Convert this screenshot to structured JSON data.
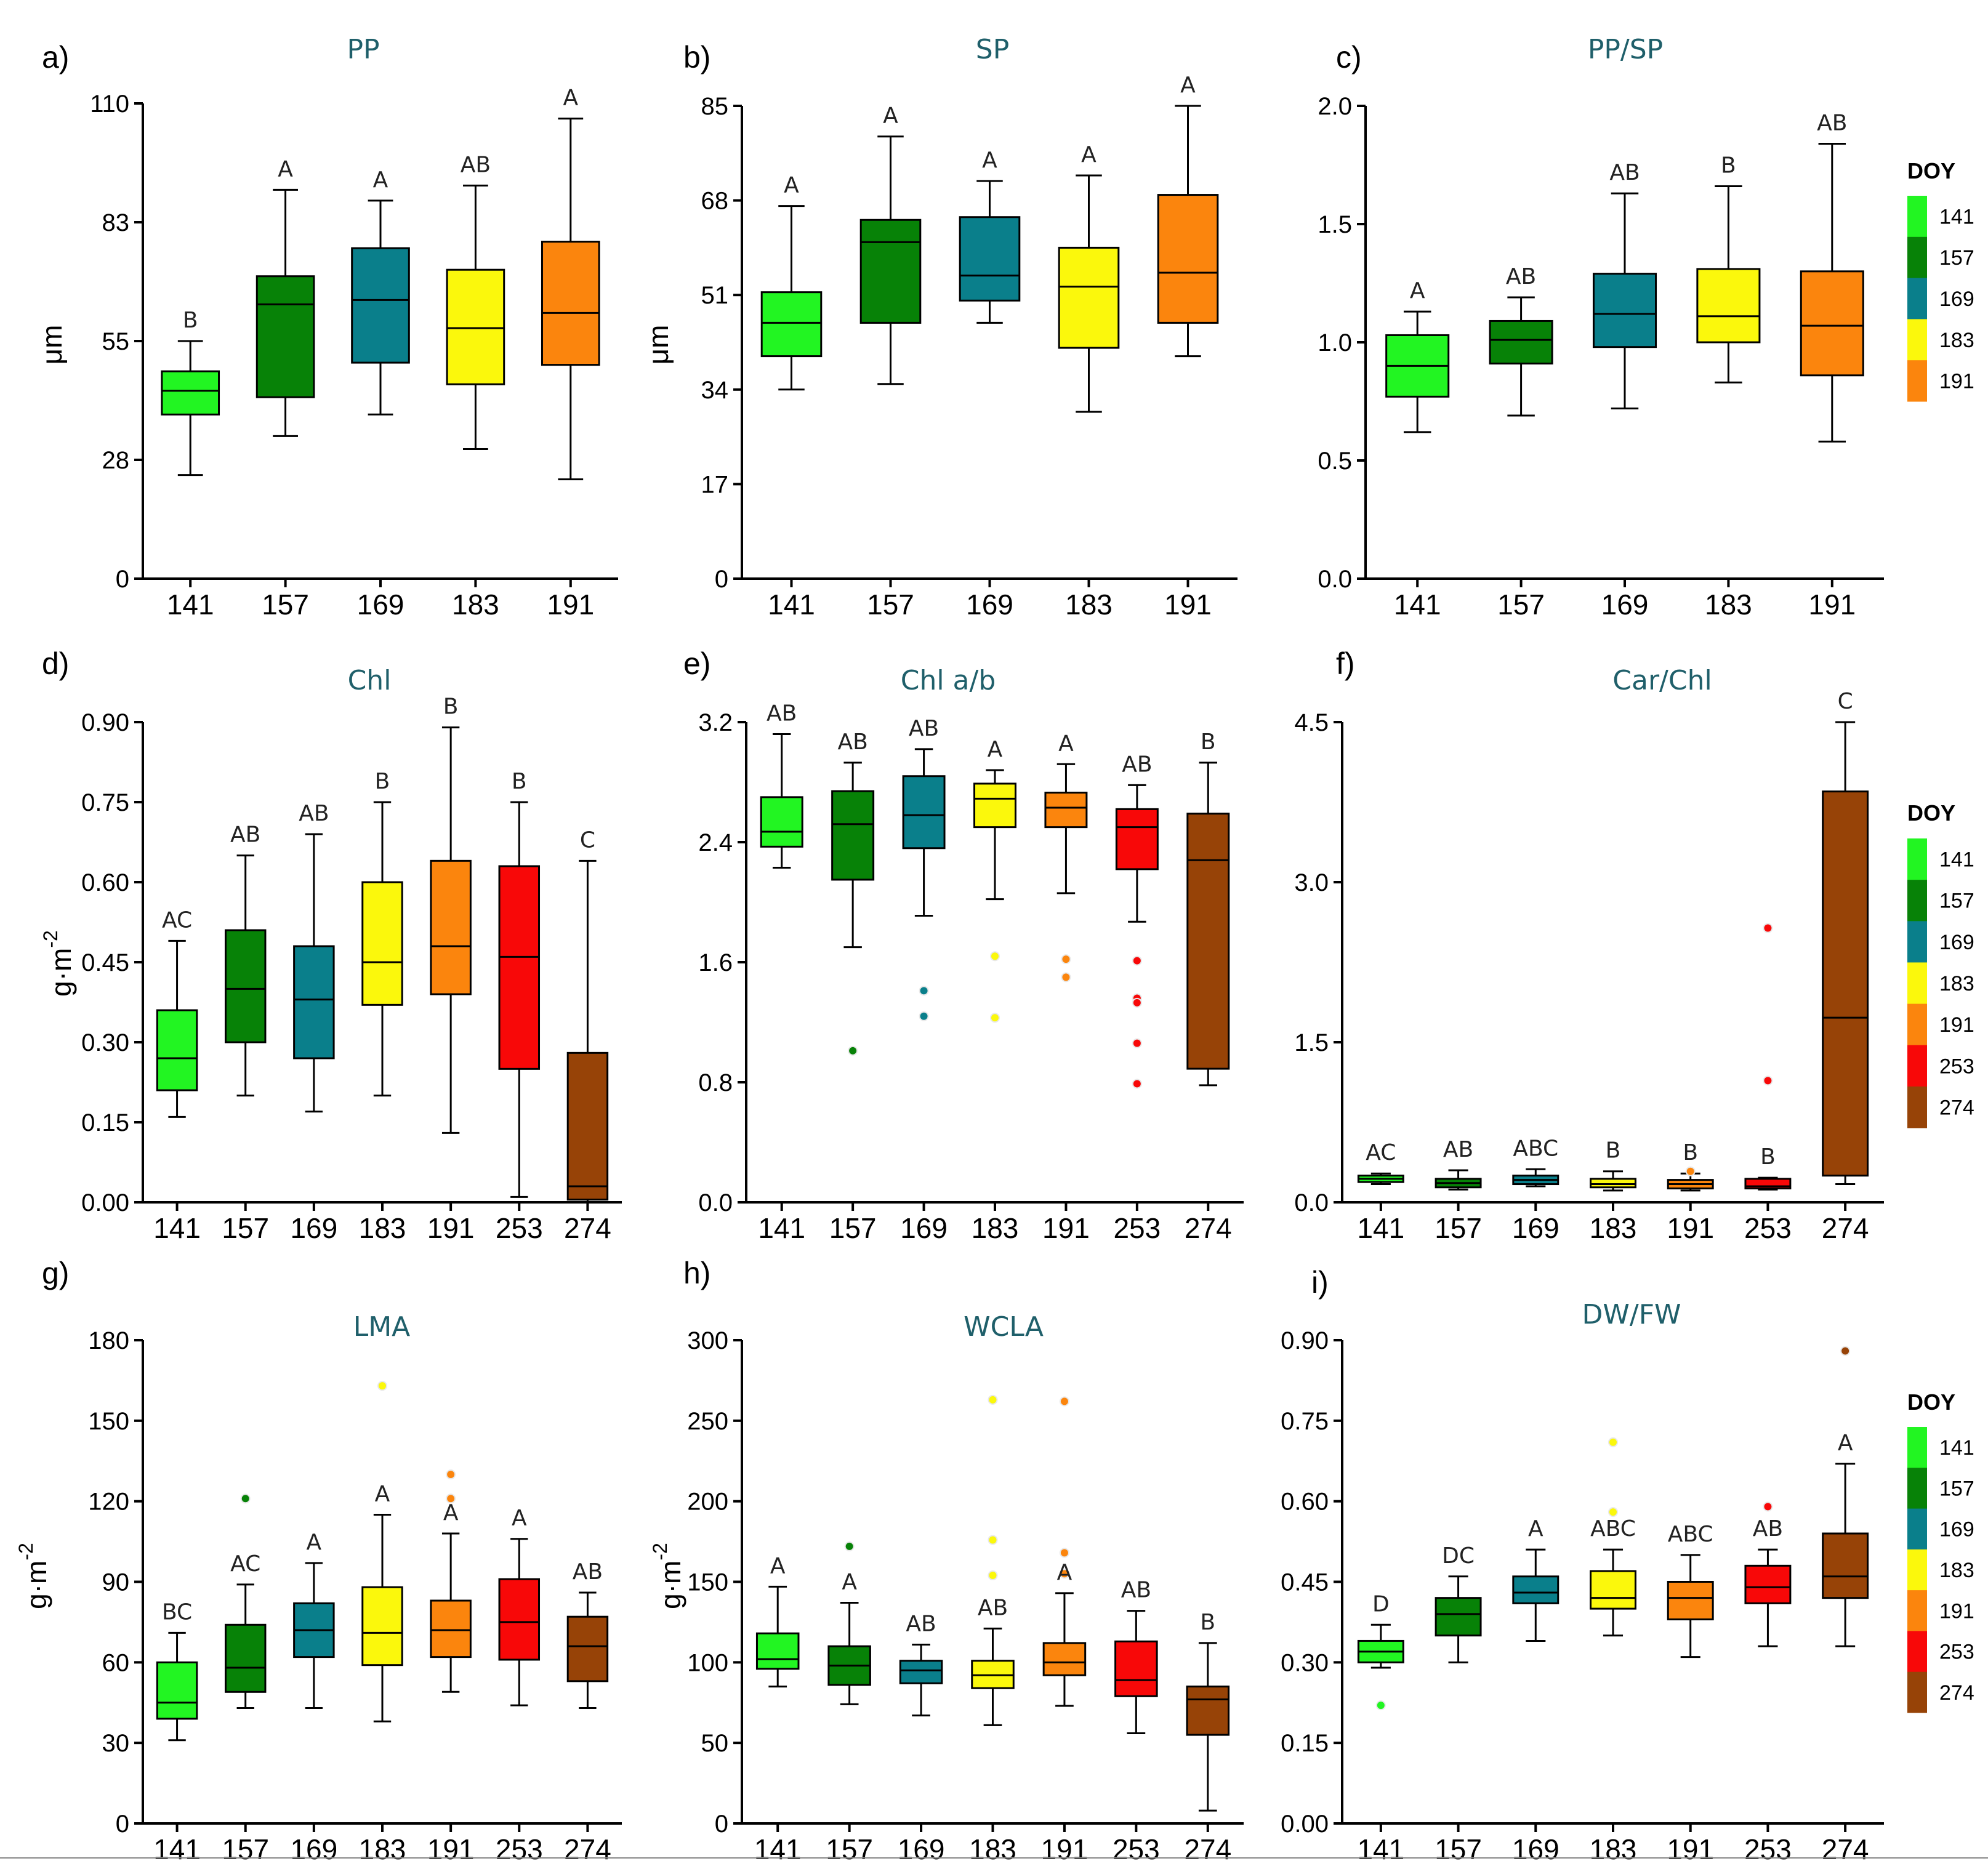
{
  "figure": {
    "doy_colors": {
      "141": "#22f522",
      "157": "#078207",
      "169": "#0a7f8b",
      "183": "#fbf80c",
      "191": "#fb850d",
      "253": "#f80808",
      "274": "#974307"
    }
  },
  "legends": [
    {
      "title": "DOY",
      "items": [
        "141",
        "157",
        "169",
        "183",
        "191"
      ]
    },
    {
      "title": "DOY",
      "items": [
        "141",
        "157",
        "169",
        "183",
        "191",
        "253",
        "274"
      ]
    },
    {
      "title": "DOY",
      "items": [
        "141",
        "157",
        "169",
        "183",
        "191",
        "253",
        "274"
      ]
    }
  ],
  "chart_data": [
    {
      "panel": "a)",
      "type": "box",
      "title": "PP",
      "ylabel": "μm",
      "ylabel_sup": "",
      "ylim": [
        0,
        110
      ],
      "yticks": [
        "0",
        "28",
        "55",
        "83",
        "110"
      ],
      "ytick_values": [
        0,
        27.5,
        55,
        82.5,
        110
      ],
      "categories": [
        "141",
        "157",
        "169",
        "183",
        "191"
      ],
      "boxes": [
        {
          "whislo": 24,
          "q1": 38,
          "med": 43.5,
          "q3": 48,
          "whishi": 55,
          "label": "B",
          "outliers": []
        },
        {
          "whislo": 33,
          "q1": 42,
          "med": 63.5,
          "q3": 70,
          "whishi": 90,
          "label": "A",
          "outliers": []
        },
        {
          "whislo": 38,
          "q1": 50,
          "med": 64.5,
          "q3": 76.5,
          "whishi": 87.5,
          "label": "A",
          "outliers": []
        },
        {
          "whislo": 30,
          "q1": 45,
          "med": 58,
          "q3": 71.5,
          "whishi": 91,
          "label": "AB",
          "outliers": []
        },
        {
          "whislo": 23,
          "q1": 49.5,
          "med": 61.5,
          "q3": 78,
          "whishi": 106.5,
          "label": "A",
          "outliers": []
        }
      ]
    },
    {
      "panel": "b)",
      "type": "box",
      "title": "SP",
      "ylabel": "μm",
      "ylabel_sup": "",
      "ylim": [
        0,
        85
      ],
      "yticks": [
        "0",
        "17",
        "34",
        "51",
        "68",
        "85"
      ],
      "ytick_values": [
        0,
        17,
        34,
        51,
        68,
        85
      ],
      "categories": [
        "141",
        "157",
        "169",
        "183",
        "191"
      ],
      "boxes": [
        {
          "whislo": 34,
          "q1": 40,
          "med": 46,
          "q3": 51.5,
          "whishi": 67,
          "label": "A",
          "outliers": []
        },
        {
          "whislo": 35,
          "q1": 46,
          "med": 60.5,
          "q3": 64.5,
          "whishi": 79.5,
          "label": "A",
          "outliers": []
        },
        {
          "whislo": 46,
          "q1": 50,
          "med": 54.5,
          "q3": 65,
          "whishi": 71.5,
          "label": "A",
          "outliers": []
        },
        {
          "whislo": 30,
          "q1": 41.5,
          "med": 52.5,
          "q3": 59.5,
          "whishi": 72.5,
          "label": "A",
          "outliers": []
        },
        {
          "whislo": 40,
          "q1": 46,
          "med": 55,
          "q3": 69,
          "whishi": 85,
          "label": "A",
          "outliers": []
        }
      ]
    },
    {
      "panel": "c)",
      "type": "box",
      "title": "PP/SP",
      "ylabel": "",
      "ylabel_sup": "",
      "ylim": [
        0,
        2.0
      ],
      "yticks": [
        "0.0",
        "0.5",
        "1.0",
        "1.5",
        "2.0"
      ],
      "ytick_values": [
        0,
        0.5,
        1.0,
        1.5,
        2.0
      ],
      "categories": [
        "141",
        "157",
        "169",
        "183",
        "191"
      ],
      "boxes": [
        {
          "whislo": 0.62,
          "q1": 0.77,
          "med": 0.9,
          "q3": 1.03,
          "whishi": 1.13,
          "label": "A",
          "outliers": []
        },
        {
          "whislo": 0.69,
          "q1": 0.91,
          "med": 1.01,
          "q3": 1.09,
          "whishi": 1.19,
          "label": "AB",
          "outliers": []
        },
        {
          "whislo": 0.72,
          "q1": 0.98,
          "med": 1.12,
          "q3": 1.29,
          "whishi": 1.63,
          "label": "AB",
          "outliers": []
        },
        {
          "whislo": 0.83,
          "q1": 1.0,
          "med": 1.11,
          "q3": 1.31,
          "whishi": 1.66,
          "label": "B",
          "outliers": []
        },
        {
          "whislo": 0.58,
          "q1": 0.86,
          "med": 1.07,
          "q3": 1.3,
          "whishi": 1.84,
          "label": "AB",
          "outliers": []
        }
      ]
    },
    {
      "panel": "d)",
      "type": "box",
      "title": "Chl",
      "ylabel": "g·m",
      "ylabel_sup": "-2",
      "ylim": [
        0,
        0.9
      ],
      "yticks": [
        "0.00",
        "0.15",
        "0.30",
        "0.45",
        "0.60",
        "0.75",
        "0.90"
      ],
      "ytick_values": [
        0,
        0.15,
        0.3,
        0.45,
        0.6,
        0.75,
        0.9
      ],
      "categories": [
        "141",
        "157",
        "169",
        "183",
        "191",
        "253",
        "274"
      ],
      "boxes": [
        {
          "whislo": 0.16,
          "q1": 0.21,
          "med": 0.27,
          "q3": 0.36,
          "whishi": 0.49,
          "label": "AC",
          "outliers": []
        },
        {
          "whislo": 0.2,
          "q1": 0.3,
          "med": 0.4,
          "q3": 0.51,
          "whishi": 0.65,
          "label": "AB",
          "outliers": []
        },
        {
          "whislo": 0.17,
          "q1": 0.27,
          "med": 0.38,
          "q3": 0.48,
          "whishi": 0.69,
          "label": "AB",
          "outliers": []
        },
        {
          "whislo": 0.2,
          "q1": 0.37,
          "med": 0.45,
          "q3": 0.6,
          "whishi": 0.75,
          "label": "B",
          "outliers": []
        },
        {
          "whislo": 0.13,
          "q1": 0.39,
          "med": 0.48,
          "q3": 0.64,
          "whishi": 0.89,
          "label": "B",
          "outliers": []
        },
        {
          "whislo": 0.01,
          "q1": 0.25,
          "med": 0.46,
          "q3": 0.63,
          "whishi": 0.75,
          "label": "B",
          "outliers": []
        },
        {
          "whislo": 0.0,
          "q1": 0.005,
          "med": 0.03,
          "q3": 0.28,
          "whishi": 0.64,
          "label": "C",
          "outliers": []
        }
      ]
    },
    {
      "panel": "e)",
      "type": "box",
      "title": "Chl a/b",
      "ylabel": "",
      "ylabel_sup": "",
      "ylim": [
        0,
        3.2
      ],
      "yticks": [
        "0.0",
        "0.8",
        "1.6",
        "2.4",
        "3.2"
      ],
      "ytick_values": [
        0,
        0.8,
        1.6,
        2.4,
        3.2
      ],
      "categories": [
        "141",
        "157",
        "169",
        "183",
        "191",
        "253",
        "274"
      ],
      "boxes": [
        {
          "whislo": 2.23,
          "q1": 2.37,
          "med": 2.47,
          "q3": 2.7,
          "whishi": 3.12,
          "label": "AB",
          "outliers": []
        },
        {
          "whislo": 1.7,
          "q1": 2.15,
          "med": 2.52,
          "q3": 2.74,
          "whishi": 2.93,
          "label": "AB",
          "outliers": [
            1.01
          ]
        },
        {
          "whislo": 1.91,
          "q1": 2.36,
          "med": 2.58,
          "q3": 2.84,
          "whishi": 3.02,
          "label": "AB",
          "outliers": [
            1.41,
            1.24
          ]
        },
        {
          "whislo": 2.02,
          "q1": 2.5,
          "med": 2.69,
          "q3": 2.79,
          "whishi": 2.88,
          "label": "A",
          "outliers": [
            1.64,
            1.23
          ]
        },
        {
          "whislo": 2.06,
          "q1": 2.5,
          "med": 2.63,
          "q3": 2.73,
          "whishi": 2.92,
          "label": "A",
          "outliers": [
            1.62,
            1.5
          ]
        },
        {
          "whislo": 1.87,
          "q1": 2.22,
          "med": 2.5,
          "q3": 2.62,
          "whishi": 2.78,
          "label": "AB",
          "outliers": [
            1.61,
            1.36,
            1.33,
            1.06,
            0.79
          ]
        },
        {
          "whislo": 0.78,
          "q1": 0.89,
          "med": 2.28,
          "q3": 2.59,
          "whishi": 2.93,
          "label": "B",
          "outliers": []
        }
      ]
    },
    {
      "panel": "f)",
      "type": "box",
      "title": "Car/Chl",
      "ylabel": "",
      "ylabel_sup": "",
      "ylim": [
        0,
        4.5
      ],
      "yticks": [
        "0.0",
        "1.5",
        "3.0",
        "4.5"
      ],
      "ytick_values": [
        0,
        1.5,
        3.0,
        4.5
      ],
      "categories": [
        "141",
        "157",
        "169",
        "183",
        "191",
        "253",
        "274"
      ],
      "boxes": [
        {
          "whislo": 0.17,
          "q1": 0.19,
          "med": 0.22,
          "q3": 0.25,
          "whishi": 0.27,
          "label": "AC",
          "outliers": []
        },
        {
          "whislo": 0.12,
          "q1": 0.14,
          "med": 0.18,
          "q3": 0.22,
          "whishi": 0.3,
          "label": "AB",
          "outliers": []
        },
        {
          "whislo": 0.15,
          "q1": 0.17,
          "med": 0.21,
          "q3": 0.25,
          "whishi": 0.31,
          "label": "ABC",
          "outliers": []
        },
        {
          "whislo": 0.11,
          "q1": 0.14,
          "med": 0.17,
          "q3": 0.22,
          "whishi": 0.29,
          "label": "B",
          "outliers": []
        },
        {
          "whislo": 0.11,
          "q1": 0.13,
          "med": 0.17,
          "q3": 0.21,
          "whishi": 0.27,
          "label": "B",
          "outliers": [
            0.29
          ]
        },
        {
          "whislo": 0.12,
          "q1": 0.13,
          "med": 0.15,
          "q3": 0.22,
          "whishi": 0.23,
          "label": "B",
          "outliers": [
            2.57,
            1.14
          ]
        },
        {
          "whislo": 0.17,
          "q1": 0.25,
          "med": 1.73,
          "q3": 3.85,
          "whishi": 4.5,
          "label": "C",
          "outliers": []
        }
      ]
    },
    {
      "panel": "g)",
      "type": "box",
      "title": "LMA",
      "ylabel": "g·m",
      "ylabel_sup": "-2",
      "ylim": [
        0,
        180
      ],
      "yticks": [
        "0",
        "30",
        "60",
        "90",
        "120",
        "150",
        "180"
      ],
      "ytick_values": [
        0,
        30,
        60,
        90,
        120,
        150,
        180
      ],
      "categories": [
        "141",
        "157",
        "169",
        "183",
        "191",
        "253",
        "274"
      ],
      "boxes": [
        {
          "whislo": 31,
          "q1": 39,
          "med": 45,
          "q3": 60,
          "whishi": 71,
          "label": "BC",
          "outliers": []
        },
        {
          "whislo": 43,
          "q1": 49,
          "med": 58,
          "q3": 74,
          "whishi": 89,
          "label": "AC",
          "outliers": [
            121
          ]
        },
        {
          "whislo": 43,
          "q1": 62,
          "med": 72,
          "q3": 82,
          "whishi": 97,
          "label": "A",
          "outliers": []
        },
        {
          "whislo": 38,
          "q1": 59,
          "med": 71,
          "q3": 88,
          "whishi": 115,
          "label": "A",
          "outliers": [
            163
          ]
        },
        {
          "whislo": 49,
          "q1": 62,
          "med": 72,
          "q3": 83,
          "whishi": 108,
          "label": "A",
          "outliers": [
            130,
            121
          ]
        },
        {
          "whislo": 44,
          "q1": 61,
          "med": 75,
          "q3": 91,
          "whishi": 106,
          "label": "A",
          "outliers": []
        },
        {
          "whislo": 43,
          "q1": 53,
          "med": 66,
          "q3": 77,
          "whishi": 86,
          "label": "AB",
          "outliers": []
        }
      ]
    },
    {
      "panel": "h)",
      "type": "box",
      "title": "WCLA",
      "ylabel": "g·m",
      "ylabel_sup": "-2",
      "ylim": [
        0,
        300
      ],
      "yticks": [
        "0",
        "50",
        "100",
        "150",
        "200",
        "250",
        "300"
      ],
      "ytick_values": [
        0,
        50,
        100,
        150,
        200,
        250,
        300
      ],
      "categories": [
        "141",
        "157",
        "169",
        "183",
        "191",
        "253",
        "274"
      ],
      "boxes": [
        {
          "whislo": 85,
          "q1": 96,
          "med": 102,
          "q3": 118,
          "whishi": 147,
          "label": "A",
          "outliers": []
        },
        {
          "whislo": 74,
          "q1": 86,
          "med": 98,
          "q3": 110,
          "whishi": 137,
          "label": "A",
          "outliers": [
            172
          ]
        },
        {
          "whislo": 67,
          "q1": 87,
          "med": 95,
          "q3": 101,
          "whishi": 111,
          "label": "AB",
          "outliers": []
        },
        {
          "whislo": 61,
          "q1": 84,
          "med": 92,
          "q3": 101,
          "whishi": 121,
          "label": "AB",
          "outliers": [
            263,
            176,
            154
          ]
        },
        {
          "whislo": 73,
          "q1": 92,
          "med": 100,
          "q3": 112,
          "whishi": 143,
          "label": "A",
          "outliers": [
            262,
            168,
            155
          ]
        },
        {
          "whislo": 56,
          "q1": 79,
          "med": 89,
          "q3": 113,
          "whishi": 132,
          "label": "AB",
          "outliers": []
        },
        {
          "whislo": 8,
          "q1": 55,
          "med": 77,
          "q3": 85,
          "whishi": 112,
          "label": "B",
          "outliers": []
        }
      ]
    },
    {
      "panel": "i)",
      "type": "box",
      "title": "DW/FW",
      "ylabel": "",
      "ylabel_sup": "",
      "ylim": [
        0,
        0.9
      ],
      "yticks": [
        "0.00",
        "0.15",
        "0.30",
        "0.45",
        "0.60",
        "0.75",
        "0.90"
      ],
      "ytick_values": [
        0,
        0.15,
        0.3,
        0.45,
        0.6,
        0.75,
        0.9
      ],
      "categories": [
        "141",
        "157",
        "169",
        "183",
        "191",
        "253",
        "274"
      ],
      "boxes": [
        {
          "whislo": 0.29,
          "q1": 0.3,
          "med": 0.32,
          "q3": 0.34,
          "whishi": 0.37,
          "label": "D",
          "outliers": [
            0.22
          ]
        },
        {
          "whislo": 0.3,
          "q1": 0.35,
          "med": 0.39,
          "q3": 0.42,
          "whishi": 0.46,
          "label": "DC",
          "outliers": []
        },
        {
          "whislo": 0.34,
          "q1": 0.41,
          "med": 0.43,
          "q3": 0.46,
          "whishi": 0.51,
          "label": "A",
          "outliers": []
        },
        {
          "whislo": 0.35,
          "q1": 0.4,
          "med": 0.42,
          "q3": 0.47,
          "whishi": 0.51,
          "label": "ABC",
          "outliers": [
            0.71,
            0.58
          ]
        },
        {
          "whislo": 0.31,
          "q1": 0.38,
          "med": 0.42,
          "q3": 0.45,
          "whishi": 0.5,
          "label": "ABC",
          "outliers": []
        },
        {
          "whislo": 0.33,
          "q1": 0.41,
          "med": 0.44,
          "q3": 0.48,
          "whishi": 0.51,
          "label": "AB",
          "outliers": [
            0.59
          ]
        },
        {
          "whislo": 0.33,
          "q1": 0.42,
          "med": 0.46,
          "q3": 0.54,
          "whishi": 0.67,
          "label": "A",
          "outliers": [
            0.88
          ]
        }
      ]
    }
  ]
}
